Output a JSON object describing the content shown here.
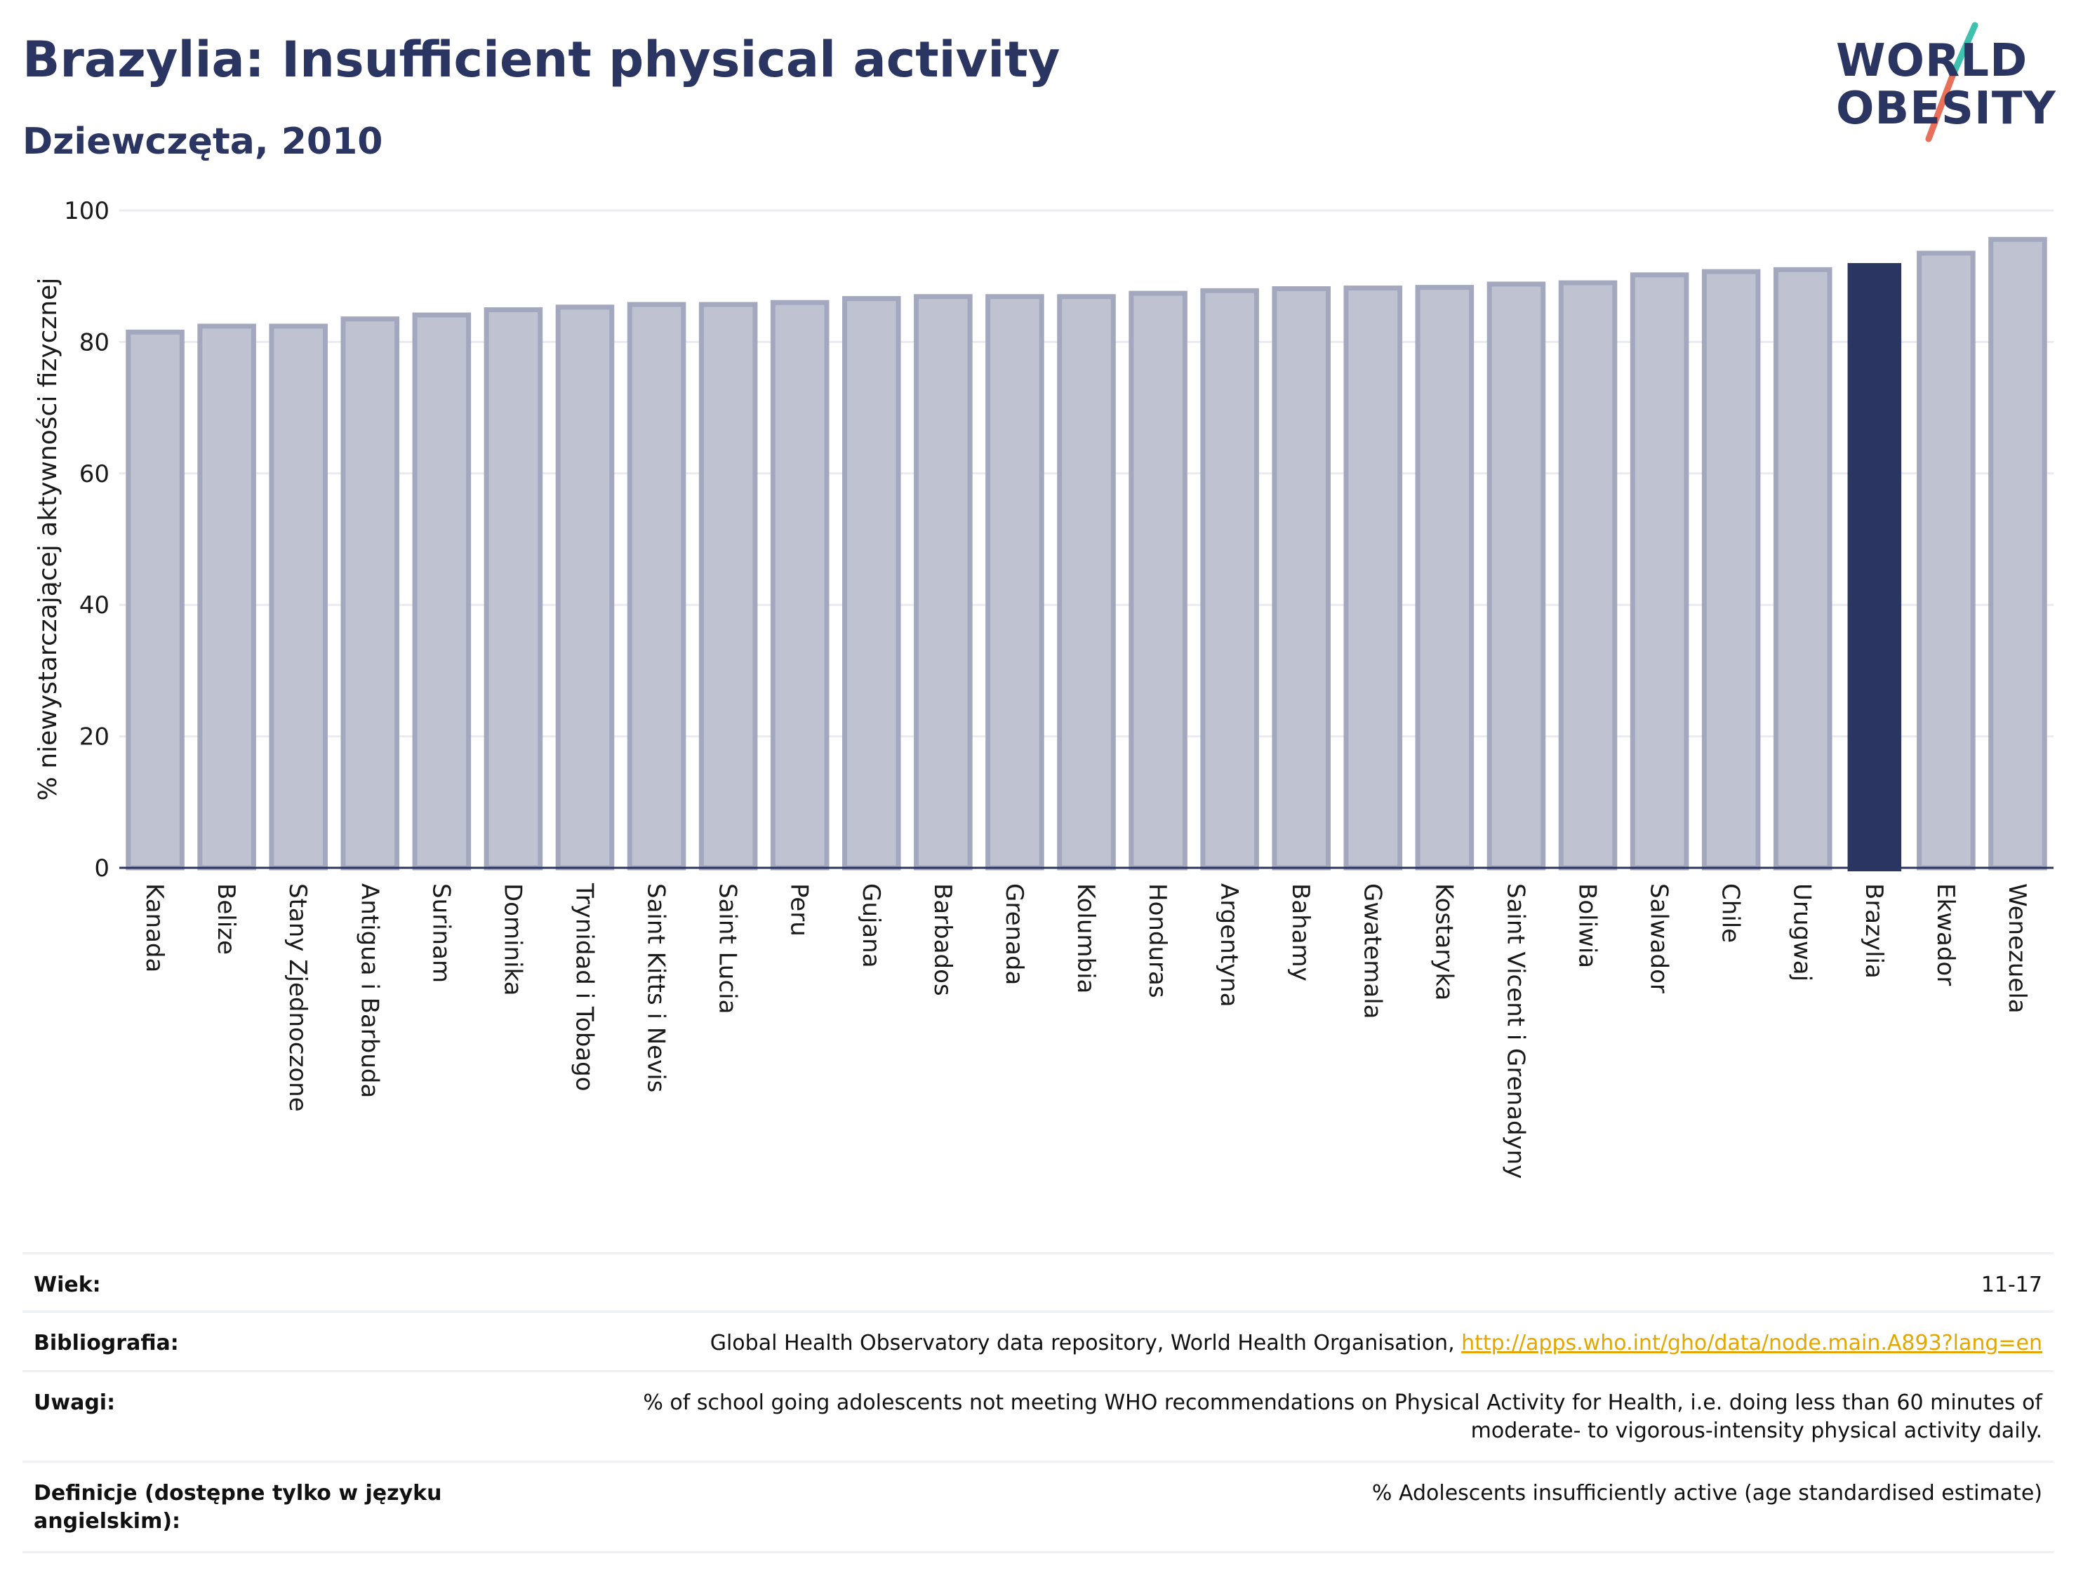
{
  "header": {
    "title": "Brazylia: Insufficient physical activity",
    "subtitle": "Dziewczęta, 2010"
  },
  "logo": {
    "line1": "WORLD",
    "line2": "OBESITY",
    "colors": {
      "text": "#2b3561",
      "slash_top": "#3fc1b0",
      "slash_bottom": "#e8705a"
    }
  },
  "colors": {
    "bar": "#bfc2d1",
    "bar_outline": "#a3a8bf",
    "highlight": "#2b3561",
    "grid": "#e9ebf1",
    "axis": "#2b3561",
    "link": "#e3a700"
  },
  "chart_data": {
    "type": "bar",
    "title": "",
    "xlabel": "",
    "ylabel": "% niewystarczającej aktywności fizycznej",
    "ylim": [
      0,
      100
    ],
    "yticks": [
      0,
      20,
      40,
      60,
      80,
      100
    ],
    "grid": true,
    "highlight": "Brazylia",
    "categories": [
      "Kanada",
      "Belize",
      "Stany Zjednoczone",
      "Antigua i Barbuda",
      "Surinam",
      "Dominika",
      "Trynidad i Tobago",
      "Saint Kitts i Nevis",
      "Saint Lucia",
      "Peru",
      "Gujana",
      "Barbados",
      "Grenada",
      "Kolumbia",
      "Honduras",
      "Argentyna",
      "Bahamy",
      "Gwatemala",
      "Kostaryka",
      "Saint Vicent i Grenadyny",
      "Boliwia",
      "Salwador",
      "Chile",
      "Urugwaj",
      "Brazylia",
      "Ekwador",
      "Wenezuela"
    ],
    "values": [
      81.5,
      82.4,
      82.4,
      83.5,
      84.1,
      84.9,
      85.3,
      85.7,
      85.7,
      86.0,
      86.6,
      86.9,
      86.9,
      86.9,
      87.4,
      87.8,
      88.1,
      88.2,
      88.3,
      88.8,
      89.0,
      90.2,
      90.7,
      91.0,
      92.0,
      93.5,
      95.6
    ]
  },
  "info": [
    {
      "key": "Wiek:",
      "value": "11-17"
    },
    {
      "key": "Bibliografia:",
      "value": "Global Health Observatory data repository, World Health Organisation, ",
      "link": "http://apps.who.int/gho/data/node.main.A893?lang=en"
    },
    {
      "key": "Uwagi:",
      "value": "% of school going adolescents not meeting WHO recommendations on Physical Activity for Health, i.e. doing less than 60 minutes of moderate- to vigorous-intensity physical activity daily."
    },
    {
      "key": "Definicje (dostępne tylko w języku angielskim):",
      "value": "% Adolescents insufficiently active (age standardised estimate)"
    }
  ]
}
